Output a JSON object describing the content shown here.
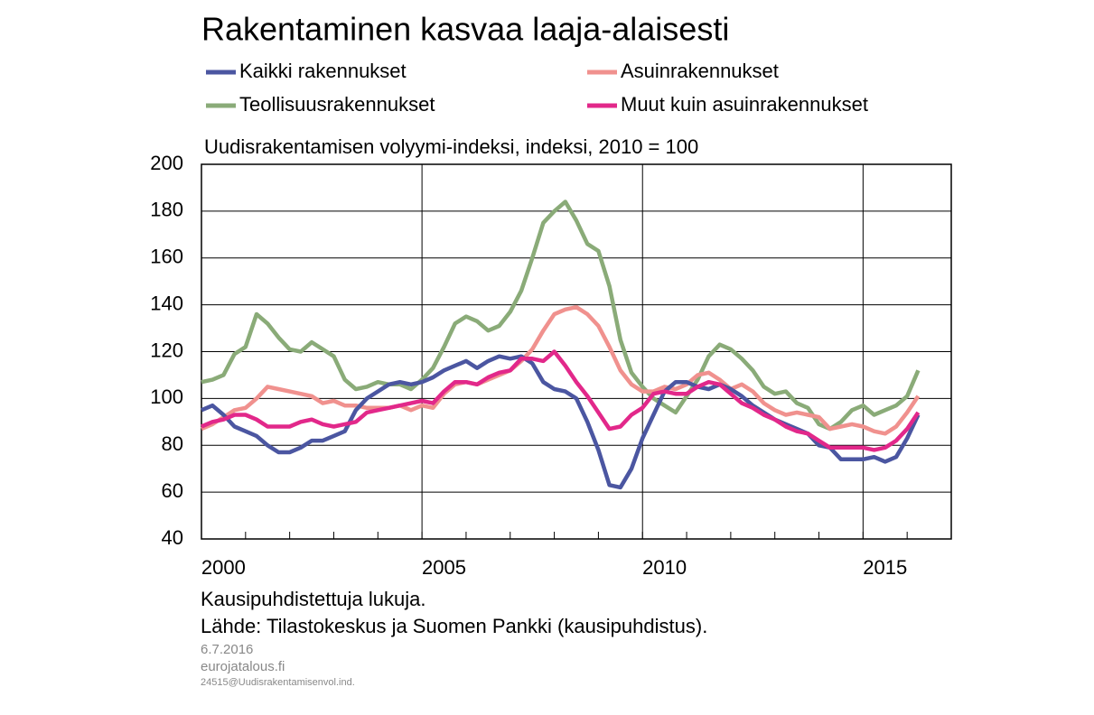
{
  "chart_data": {
    "type": "line",
    "title": "Rakentaminen kasvaa laaja-alaisesti",
    "subtitle": "Uudisrakentamisen  volyymi-indeksi,  indeksi,  2010 = 100",
    "notes": [
      "Kausipuhdistettuja  lukuja.",
      "Lähde:  Tilastokeskus  ja  Suomen  Pankki  (kausipuhdistus)."
    ],
    "footer": [
      "6.7.2016",
      "eurojatalous.fi",
      "24515@Uudisrakentamisenvol.ind."
    ],
    "x": [
      2000,
      2000.25,
      2000.5,
      2000.75,
      2001,
      2001.25,
      2001.5,
      2001.75,
      2002,
      2002.25,
      2002.5,
      2002.75,
      2003,
      2003.25,
      2003.5,
      2003.75,
      2004,
      2004.25,
      2004.5,
      2004.75,
      2005,
      2005.25,
      2005.5,
      2005.75,
      2006,
      2006.25,
      2006.5,
      2006.75,
      2007,
      2007.25,
      2007.5,
      2007.75,
      2008,
      2008.25,
      2008.5,
      2008.75,
      2009,
      2009.25,
      2009.5,
      2009.75,
      2010,
      2010.25,
      2010.5,
      2010.75,
      2011,
      2011.25,
      2011.5,
      2011.75,
      2012,
      2012.25,
      2012.5,
      2012.75,
      2013,
      2013.25,
      2013.5,
      2013.75,
      2014,
      2014.25,
      2014.5,
      2014.75,
      2015,
      2015.25,
      2015.5,
      2015.75,
      2016,
      2016.25
    ],
    "series": [
      {
        "name": "Kaikki rakennukset",
        "color": "#4b56a1",
        "values": [
          95,
          97,
          93,
          88,
          86,
          84,
          80,
          77,
          77,
          79,
          82,
          82,
          84,
          86,
          95,
          100,
          103,
          106,
          107,
          106,
          107,
          109,
          112,
          114,
          116,
          113,
          116,
          118,
          117,
          118,
          115,
          107,
          104,
          103,
          100,
          90,
          78,
          63,
          62,
          70,
          83,
          93,
          103,
          107,
          107,
          105,
          104,
          106,
          104,
          101,
          97,
          94,
          91,
          89,
          87,
          85,
          80,
          79,
          74,
          74,
          74,
          75,
          73,
          75,
          83,
          93
        ]
      },
      {
        "name": "Asuinrakennukset",
        "color": "#f0918e",
        "values": [
          87,
          89,
          92,
          95,
          96,
          100,
          105,
          104,
          103,
          102,
          101,
          98,
          99,
          97,
          97,
          96,
          96,
          96,
          97,
          95,
          97,
          96,
          102,
          106,
          107,
          106,
          108,
          110,
          112,
          116,
          121,
          129,
          136,
          138,
          139,
          136,
          131,
          122,
          112,
          106,
          103,
          103,
          105,
          104,
          106,
          110,
          111,
          108,
          104,
          106,
          103,
          98,
          95,
          93,
          94,
          93,
          92,
          87,
          88,
          89,
          88,
          86,
          85,
          88,
          94,
          101
        ]
      },
      {
        "name": "Teollisuusrakennukset",
        "color": "#8aab78",
        "values": [
          107,
          108,
          110,
          119,
          122,
          136,
          132,
          126,
          121,
          120,
          124,
          121,
          118,
          108,
          104,
          105,
          107,
          106,
          106,
          104,
          108,
          113,
          122,
          132,
          135,
          133,
          129,
          131,
          137,
          146,
          160,
          175,
          180,
          184,
          176,
          166,
          163,
          148,
          125,
          111,
          105,
          100,
          97,
          94,
          101,
          108,
          118,
          123,
          121,
          117,
          112,
          105,
          102,
          103,
          98,
          96,
          89,
          87,
          90,
          95,
          97,
          93,
          95,
          97,
          101,
          112
        ]
      },
      {
        "name": "Muut kuin asuinrakennukset",
        "color": "#e2288a",
        "values": [
          88,
          90,
          91,
          93,
          93,
          91,
          88,
          88,
          88,
          90,
          91,
          89,
          88,
          89,
          90,
          94,
          95,
          96,
          97,
          98,
          99,
          98,
          103,
          107,
          107,
          106,
          109,
          111,
          112,
          117,
          117,
          116,
          120,
          114,
          107,
          101,
          94,
          87,
          88,
          93,
          96,
          102,
          103,
          102,
          102,
          105,
          107,
          106,
          102,
          98,
          96,
          93,
          91,
          88,
          86,
          85,
          82,
          79,
          79,
          79,
          79,
          78,
          79,
          82,
          87,
          94
        ]
      }
    ],
    "xlim": [
      2000,
      2017
    ],
    "xticks": [
      2000,
      2005,
      2010,
      2015
    ],
    "ylim": [
      40,
      200
    ],
    "yticks": [
      40,
      60,
      80,
      100,
      120,
      140,
      160,
      180,
      200
    ],
    "grid": true
  }
}
